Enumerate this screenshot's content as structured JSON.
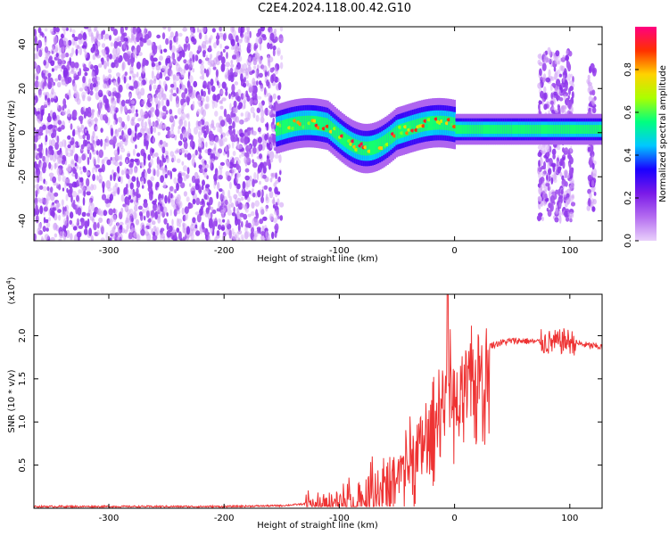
{
  "figure": {
    "title": "C2E4.2024.118.00.42.G10"
  },
  "chart_data": [
    {
      "type": "heatmap",
      "xlabel": "Height of straight line (km)",
      "ylabel": "Frequency (Hz)",
      "xlim": [
        -365,
        128
      ],
      "ylim": [
        -49,
        48
      ],
      "xticks": [
        -300,
        -200,
        -100,
        0,
        100
      ],
      "yticks": [
        -40,
        -20,
        0,
        20,
        40
      ],
      "colorbar": {
        "label": "Normalized spectral amplitude",
        "ticks": [
          "0.0",
          "0.2",
          "0.4",
          "0.6",
          "0.8"
        ],
        "range": [
          0,
          1
        ],
        "colormap": [
          "#e9d0fb",
          "#b46cf0",
          "#7a1ae8",
          "#1a00ff",
          "#00c8ff",
          "#00ff80",
          "#aaff00",
          "#ffd200",
          "#ff3000",
          "#ff0080"
        ]
      },
      "features": [
        {
          "name": "broadband noise",
          "x_range": [
            -365,
            -150
          ],
          "freq_range": [
            -49,
            48
          ],
          "amplitude": 0.1
        },
        {
          "name": "tone band",
          "x_range": [
            -155,
            128
          ],
          "center_freq": 1.5,
          "amplitude": 0.95
        },
        {
          "name": "noise burst",
          "x_range": [
            73,
            103
          ],
          "freq_range": [
            -40,
            37
          ],
          "amplitude": 0.12
        },
        {
          "name": "noise burst",
          "x_range": [
            116,
            122
          ],
          "freq_range": [
            -35,
            30
          ],
          "amplitude": 0.06
        }
      ]
    },
    {
      "type": "line",
      "xlabel": "Height of straight line (km)",
      "ylabel": "SNR (10 * v/v)",
      "scale_label": "(x10",
      "scale_exponent": "4",
      "scale_suffix": ")",
      "xlim": [
        -365,
        128
      ],
      "ylim": [
        0,
        2.48
      ],
      "xticks": [
        -300,
        -200,
        -100,
        0,
        100
      ],
      "yticks": [
        "0.5",
        "1.0",
        "1.5",
        "2.0"
      ],
      "line_color": "#ee3333",
      "x": [
        -365,
        -300,
        -200,
        -150,
        -130,
        -125,
        -120,
        -110,
        -100,
        -90,
        -80,
        -70,
        -60,
        -50,
        -40,
        -30,
        -20,
        -15,
        -10,
        -6,
        -2,
        0,
        5,
        10,
        15,
        20,
        25,
        30,
        40,
        50,
        60,
        70,
        80,
        90,
        95,
        100,
        110,
        120,
        128
      ],
      "values": [
        0.02,
        0.02,
        0.02,
        0.03,
        0.05,
        0.15,
        0.08,
        0.12,
        0.15,
        0.18,
        0.25,
        0.35,
        0.4,
        0.5,
        0.75,
        0.85,
        1.05,
        1.35,
        1.45,
        1.55,
        1.65,
        1.4,
        1.45,
        1.55,
        1.65,
        1.75,
        1.82,
        1.88,
        1.92,
        1.94,
        1.94,
        1.93,
        1.92,
        1.92,
        1.94,
        1.93,
        1.9,
        1.88,
        1.87
      ]
    }
  ]
}
